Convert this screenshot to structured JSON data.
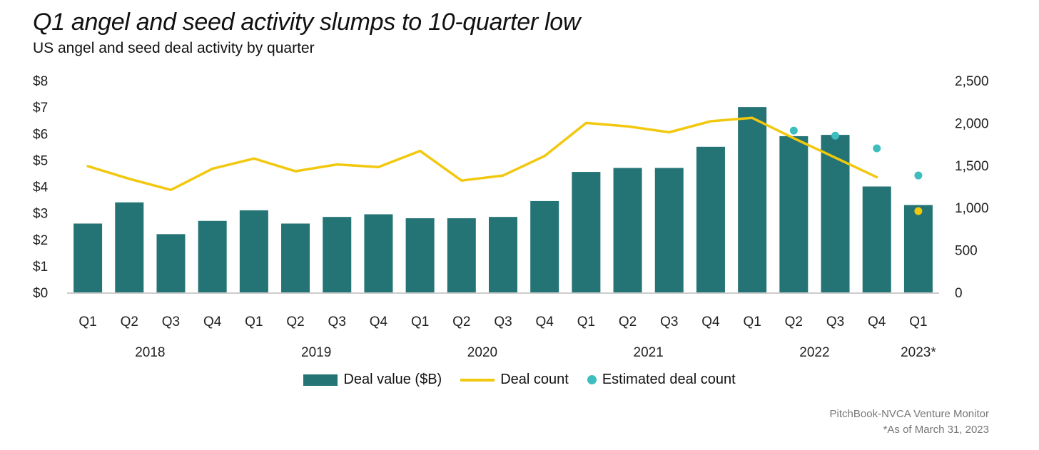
{
  "header": {
    "title": "Q1 angel and seed activity slumps to 10-quarter low",
    "subtitle": "US angel and seed deal activity by quarter"
  },
  "chart_data": {
    "type": "bar",
    "title": "Q1 angel and seed activity slumps to 10-quarter low",
    "subtitle": "US angel and seed deal activity by quarter",
    "categories": [
      "Q1",
      "Q2",
      "Q3",
      "Q4",
      "Q1",
      "Q2",
      "Q3",
      "Q4",
      "Q1",
      "Q2",
      "Q3",
      "Q4",
      "Q1",
      "Q2",
      "Q3",
      "Q4",
      "Q1",
      "Q2",
      "Q3",
      "Q4",
      "Q1"
    ],
    "years": [
      {
        "label": "2018",
        "start": 0,
        "end": 3
      },
      {
        "label": "2019",
        "start": 4,
        "end": 7
      },
      {
        "label": "2020",
        "start": 8,
        "end": 11
      },
      {
        "label": "2021",
        "start": 12,
        "end": 15
      },
      {
        "label": "2022",
        "start": 16,
        "end": 19
      },
      {
        "label": "2023*",
        "start": 20,
        "end": 20
      }
    ],
    "series": [
      {
        "name": "Deal value ($B)",
        "kind": "bar",
        "axis": "left",
        "values": [
          2.6,
          3.4,
          2.2,
          2.7,
          3.1,
          2.6,
          2.85,
          2.95,
          2.8,
          2.8,
          2.85,
          3.45,
          4.55,
          4.7,
          4.7,
          5.5,
          7.0,
          5.9,
          5.95,
          4.0,
          3.3
        ]
      },
      {
        "name": "Deal count",
        "kind": "line",
        "axis": "right",
        "values": [
          1490,
          1340,
          1210,
          1460,
          1580,
          1430,
          1510,
          1480,
          1670,
          1320,
          1380,
          1610,
          2000,
          1960,
          1890,
          2020,
          2060,
          1820,
          1590,
          1360,
          960
        ]
      },
      {
        "name": "Estimated deal count",
        "kind": "scatter",
        "axis": "right",
        "indices": [
          17,
          18,
          19,
          20
        ],
        "values": [
          1910,
          1850,
          1700,
          1380
        ]
      }
    ],
    "left_axis": {
      "min": 0,
      "max": 8,
      "ticks": [
        "$0",
        "$1",
        "$2",
        "$3",
        "$4",
        "$5",
        "$6",
        "$7",
        "$8"
      ]
    },
    "right_axis": {
      "min": 0,
      "max": 2500,
      "ticks": [
        "0",
        "500",
        "1,000",
        "1,500",
        "2,000",
        "2,500"
      ]
    },
    "colors": {
      "bar": "#247375",
      "line": "#f2c80f",
      "estimate": "#3dbdbe",
      "axis": "#999999"
    }
  },
  "legend": {
    "deal_value": "Deal value ($B)",
    "deal_count": "Deal count",
    "estimated": "Estimated deal count"
  },
  "source": {
    "line1": "PitchBook-NVCA Venture Monitor",
    "line2": "*As of March 31, 2023"
  }
}
